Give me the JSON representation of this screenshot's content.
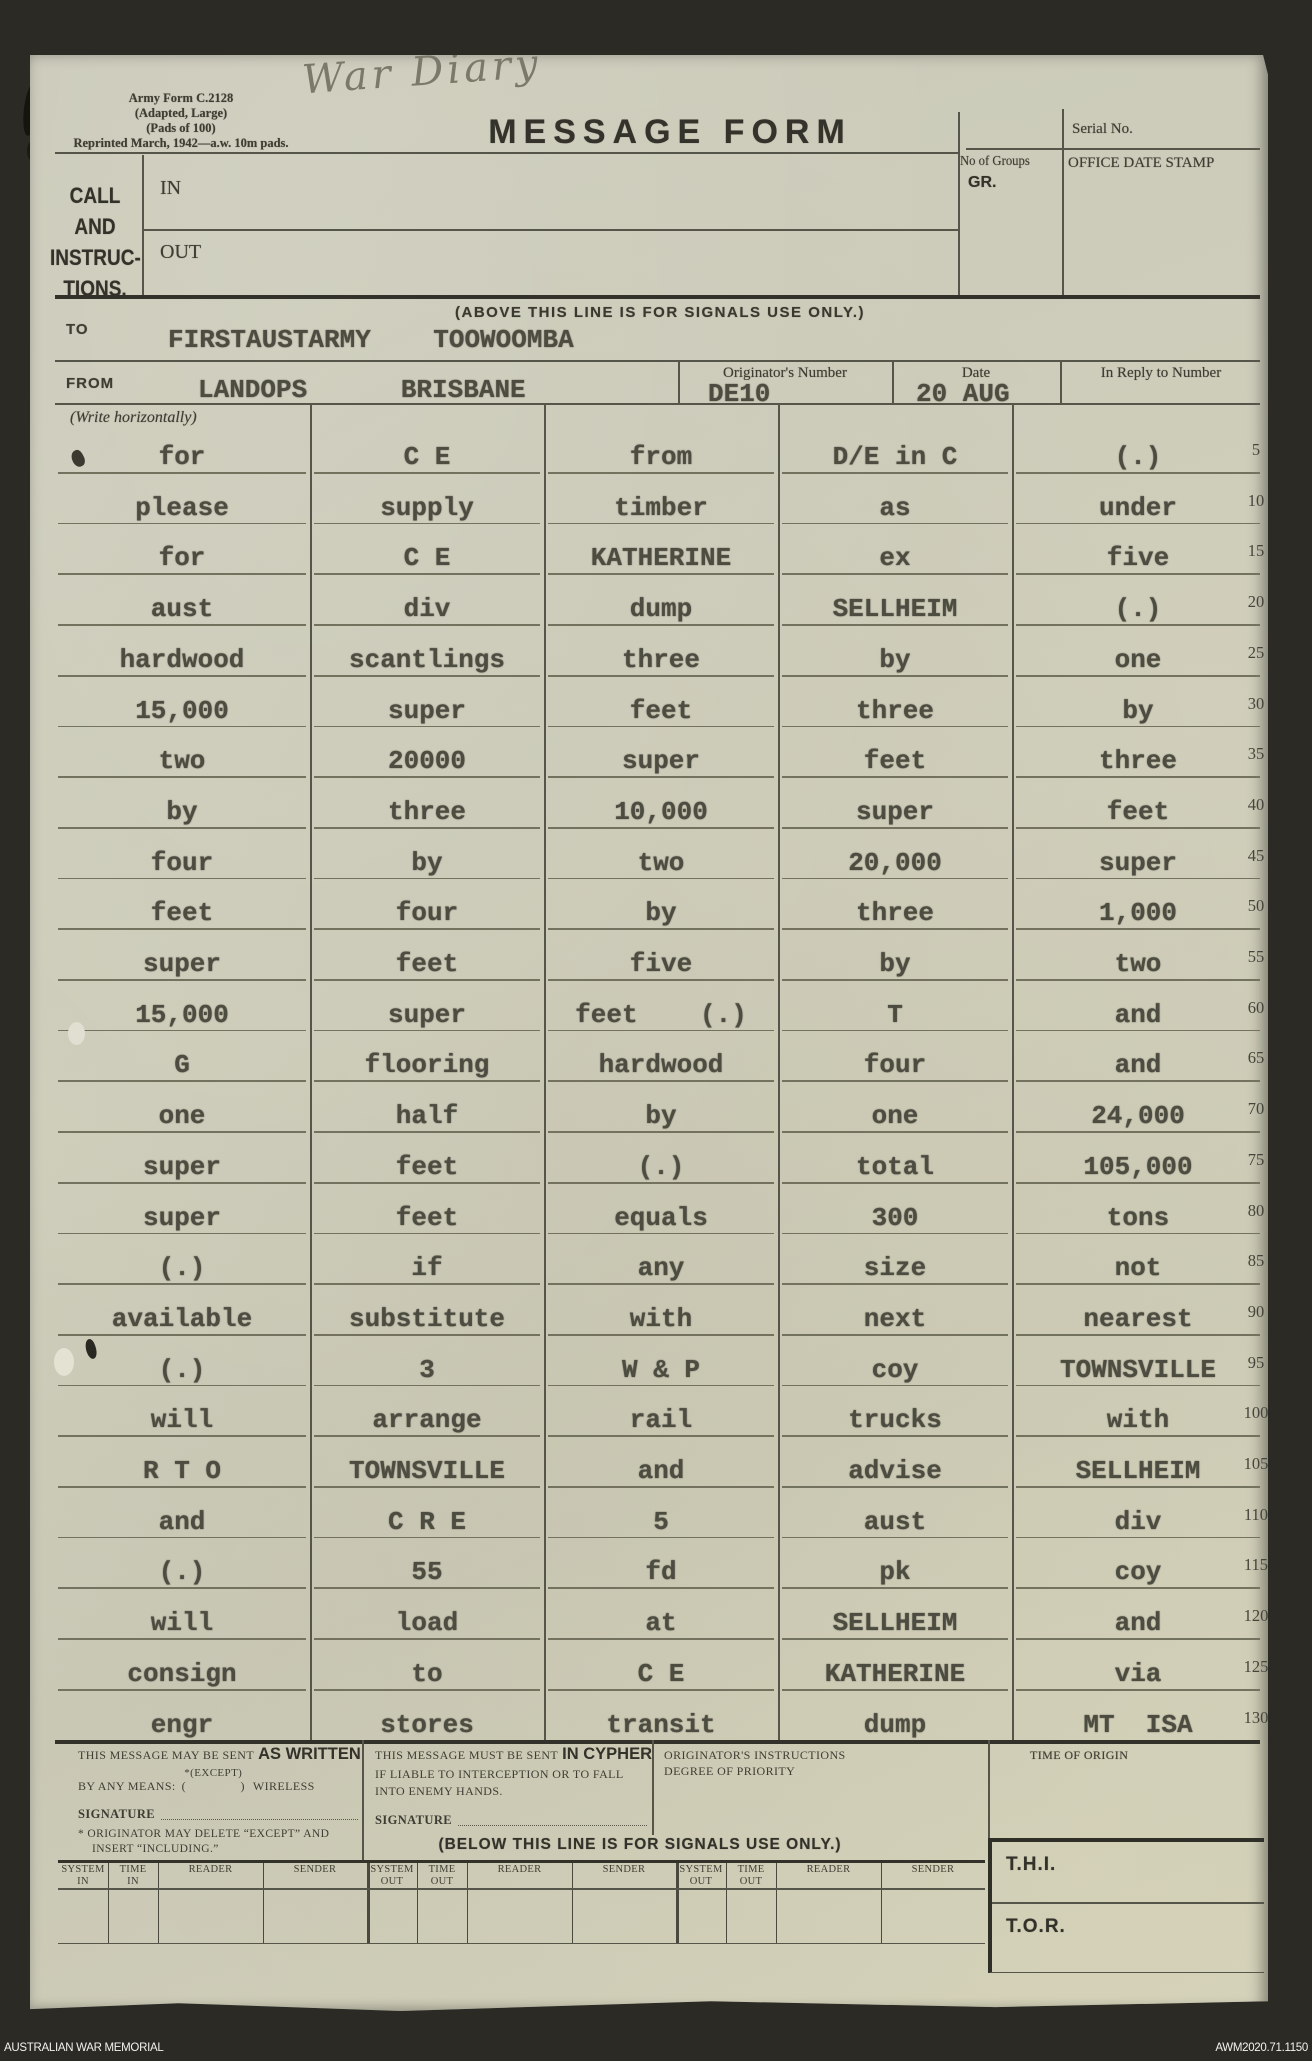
{
  "colors": {
    "paper": "#cccbb9",
    "ink": "#3e3d33",
    "typewriter_ink": "#4d4c41",
    "background": "#2b2a25"
  },
  "annotation": {
    "handwriting": "War Diary"
  },
  "header": {
    "form_info_lines": [
      "Army Form C.2128",
      "(Adapted, Large)",
      "(Pads of 100)",
      "Reprinted March, 1942—a.w. 10m pads."
    ],
    "title": "MESSAGE FORM",
    "serial_label": "Serial No.",
    "groups_label": "No of Groups",
    "gr_label": "GR.",
    "date_stamp_label": "OFFICE DATE STAMP",
    "call_lines": [
      "CALL",
      "AND",
      "INSTRUC-",
      "TIONS."
    ],
    "in_label": "IN",
    "out_label": "OUT",
    "above_note": "(ABOVE THIS LINE IS FOR SIGNALS USE ONLY.)"
  },
  "routing": {
    "to_label": "TO",
    "to_value": "FIRSTAUSTARMY    TOOWOOMBA",
    "from_label": "FROM",
    "from_value": "LANDOPS      BRISBANE",
    "originator_label": "Originator's Number",
    "originator_value": "DE10",
    "date_label": "Date",
    "date_value": "20 AUG",
    "reply_label": "In Reply to Number"
  },
  "message": {
    "write_note": "(Write horizontally)",
    "rows": [
      {
        "num": "5",
        "cells": [
          "for",
          "C E",
          "from",
          "D/E in C",
          "(.)"
        ]
      },
      {
        "num": "10",
        "cells": [
          "please",
          "supply",
          "timber",
          "as",
          "under"
        ]
      },
      {
        "num": "15",
        "cells": [
          "for",
          "C E",
          "KATHERINE",
          "ex",
          "five"
        ]
      },
      {
        "num": "20",
        "cells": [
          "aust",
          "div",
          "dump",
          "SELLHEIM",
          "(.)"
        ]
      },
      {
        "num": "25",
        "cells": [
          "hardwood",
          "scantlings",
          "three",
          "by",
          "one"
        ]
      },
      {
        "num": "30",
        "cells": [
          "15,000",
          "super",
          "feet",
          "three",
          "by"
        ]
      },
      {
        "num": "35",
        "cells": [
          "two",
          "20000",
          "super",
          "feet",
          "three"
        ]
      },
      {
        "num": "40",
        "cells": [
          "by",
          "three",
          "10,000",
          "super",
          "feet"
        ]
      },
      {
        "num": "45",
        "cells": [
          "four",
          "by",
          "two",
          "20,000",
          "super"
        ]
      },
      {
        "num": "50",
        "cells": [
          "feet",
          "four",
          "by",
          "three",
          "1,000"
        ]
      },
      {
        "num": "55",
        "cells": [
          "super",
          "feet",
          "five",
          "by",
          "two"
        ]
      },
      {
        "num": "60",
        "cells": [
          "15,000",
          "super",
          "feet    (.)",
          "T",
          "and"
        ]
      },
      {
        "num": "65",
        "cells": [
          "G",
          "flooring",
          "hardwood",
          "four",
          "and"
        ]
      },
      {
        "num": "70",
        "cells": [
          "one",
          "half",
          "by",
          "one",
          "24,000"
        ]
      },
      {
        "num": "75",
        "cells": [
          "super",
          "feet",
          "(.)",
          "total",
          "105,000"
        ]
      },
      {
        "num": "80",
        "cells": [
          "super",
          "feet",
          "equals",
          "300",
          "tons"
        ]
      },
      {
        "num": "85",
        "cells": [
          "(.)",
          "if",
          "any",
          "size",
          "not"
        ]
      },
      {
        "num": "90",
        "cells": [
          "available",
          "substitute",
          "with",
          "next",
          "nearest"
        ]
      },
      {
        "num": "95",
        "cells": [
          "(.)",
          "3",
          "W & P",
          "coy",
          "TOWNSVILLE"
        ]
      },
      {
        "num": "100",
        "cells": [
          "will",
          "arrange",
          "rail",
          "trucks",
          "with"
        ]
      },
      {
        "num": "105",
        "cells": [
          "R T O",
          "TOWNSVILLE",
          "and",
          "advise",
          "SELLHEIM"
        ]
      },
      {
        "num": "110",
        "cells": [
          "and",
          "C R E",
          "5",
          "aust",
          "div"
        ]
      },
      {
        "num": "115",
        "cells": [
          "(.)",
          "55",
          "fd",
          "pk",
          "coy"
        ]
      },
      {
        "num": "120",
        "cells": [
          "will",
          "load",
          "at",
          "SELLHEIM",
          "and"
        ]
      },
      {
        "num": "125",
        "cells": [
          "consign",
          "to",
          "C E",
          "KATHERINE",
          "via"
        ]
      },
      {
        "num": "130",
        "cells": [
          "engr",
          "stores",
          "transit",
          "dump",
          "MT  ISA"
        ]
      }
    ]
  },
  "signals_footer": {
    "sent_as_written": {
      "line1_normal": "THIS MESSAGE MAY BE SENT",
      "line1_bold": "AS WRITTEN",
      "by_any_means": "BY ANY MEANS:",
      "except": "*(EXCEPT)",
      "parens": "(                )",
      "wireless": "WIRELESS",
      "footnote_line1": "* ORIGINATOR MAY DELETE “EXCEPT” AND",
      "footnote_line2": "INSERT “INCLUDING.”"
    },
    "cypher": {
      "line1_normal": "THIS MESSAGE MUST BE SENT",
      "line1_bold": "IN CYPHER",
      "line2": "IF LIABLE TO INTERCEPTION OR TO FALL",
      "line3": "INTO ENEMY HANDS."
    },
    "originator_instructions_lines": [
      "ORIGINATOR'S INSTRUCTIONS",
      "DEGREE OF PRIORITY"
    ],
    "time_of_origin_label": "TIME OF ORIGIN",
    "signature_label": "SIGNATURE",
    "below_note": "(BELOW THIS LINE IS FOR SIGNALS USE ONLY.)",
    "thi_label": "T.H.I.",
    "tor_label": "T.O.R.",
    "columns": [
      {
        "top": "SYSTEM",
        "bottom": "IN"
      },
      {
        "top": "TIME",
        "bottom": "IN"
      },
      {
        "top": "READER",
        "bottom": ""
      },
      {
        "top": "SENDER",
        "bottom": ""
      },
      {
        "top": "SYSTEM",
        "bottom": "OUT"
      },
      {
        "top": "TIME",
        "bottom": "OUT"
      },
      {
        "top": "READER",
        "bottom": ""
      },
      {
        "top": "SENDER",
        "bottom": ""
      },
      {
        "top": "SYSTEM",
        "bottom": "OUT"
      },
      {
        "top": "TIME",
        "bottom": "OUT"
      },
      {
        "top": "READER",
        "bottom": ""
      },
      {
        "top": "SENDER",
        "bottom": ""
      }
    ]
  },
  "archive_footer": {
    "institution": "AUSTRALIAN WAR MEMORIAL",
    "reference": "AWM2020.71.1150"
  }
}
